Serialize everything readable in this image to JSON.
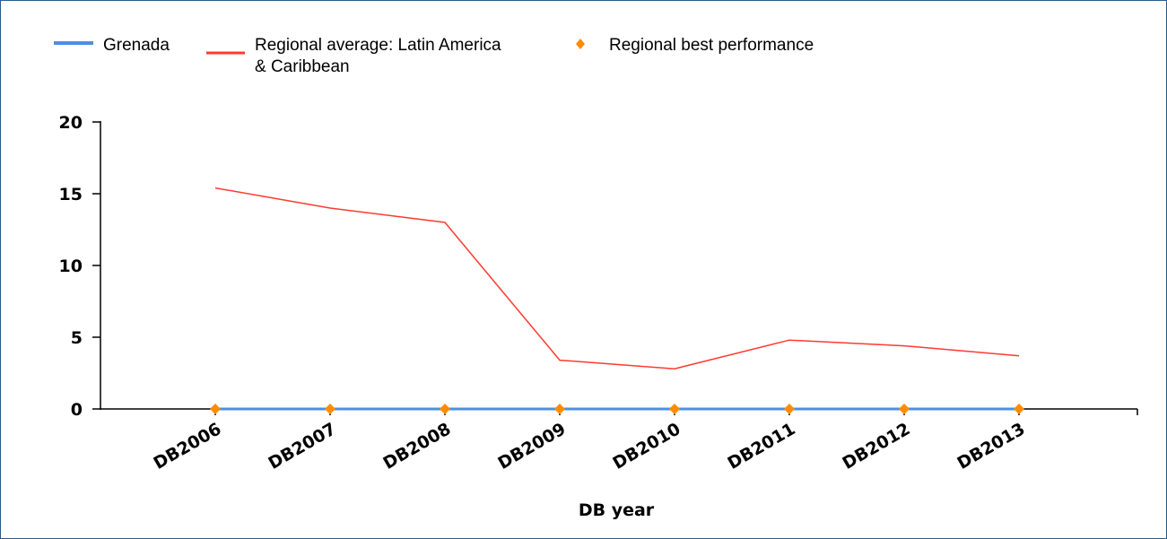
{
  "chart_data": {
    "type": "line",
    "xlabel": "DB year",
    "ylabel": "",
    "ylim": [
      0,
      20
    ],
    "yticks": [
      0,
      5,
      10,
      15,
      20
    ],
    "categories": [
      "DB2006",
      "DB2007",
      "DB2008",
      "DB2009",
      "DB2010",
      "DB2011",
      "DB2012",
      "DB2013"
    ],
    "legend_position": "top-left",
    "grid": false,
    "series": [
      {
        "name": "Grenada",
        "color": "#4a90e2",
        "marker": "none",
        "values": [
          0,
          0,
          0,
          0,
          0,
          0,
          0,
          0
        ]
      },
      {
        "name": "Regional average: Latin America & Caribbean",
        "name_lines": [
          "Regional average: Latin America",
          "& Caribbean"
        ],
        "color": "#ff3b30",
        "marker": "none",
        "values": [
          15.4,
          14.0,
          13.0,
          3.4,
          2.8,
          4.8,
          4.4,
          3.7
        ]
      },
      {
        "name": "Regional best performance",
        "color": "#ff8c00",
        "marker": "diamond",
        "values": [
          0,
          0,
          0,
          0,
          0,
          0,
          0,
          0
        ]
      }
    ]
  }
}
